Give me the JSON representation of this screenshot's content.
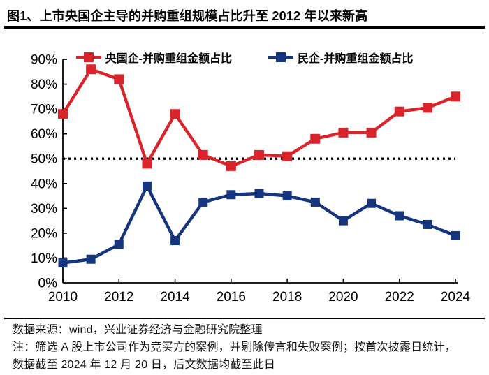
{
  "title": "图1、上市央国企主导的并购重组规模占比升至 2012 年以来新高",
  "legend": [
    {
      "label": "央国企-并购重组金额占比",
      "color": "#d9242b"
    },
    {
      "label": "民企-并购重组金额占比",
      "color": "#15357e"
    }
  ],
  "chart_data": {
    "type": "line",
    "x": [
      2010,
      2011,
      2012,
      2013,
      2014,
      2015,
      2016,
      2017,
      2018,
      2019,
      2020,
      2021,
      2022,
      2023,
      2024
    ],
    "series": [
      {
        "name": "央国企-并购重组金额占比",
        "color": "#d9242b",
        "marker": "square",
        "marker_size": 14,
        "values": [
          68,
          86,
          82,
          48,
          68,
          51.5,
          47,
          51.5,
          51,
          58,
          60.5,
          60.5,
          69,
          70.5,
          75
        ]
      },
      {
        "name": "民企-并购重组金额占比",
        "color": "#15357e",
        "marker": "square",
        "marker_size": 13,
        "values": [
          8,
          9.5,
          15.5,
          39,
          17,
          32.5,
          35.5,
          36,
          35,
          32.5,
          25,
          32,
          27,
          23.5,
          19
        ]
      }
    ],
    "ylim": [
      0,
      90
    ],
    "ytick_step": 10,
    "ytick_suffix": "%",
    "xticks": [
      2010,
      2012,
      2014,
      2016,
      2018,
      2020,
      2022,
      2024
    ],
    "reference_line": {
      "value": 50,
      "style": "dotted",
      "color": "#000000"
    },
    "grid": false,
    "legend_position": "top",
    "axis_color": "#000000"
  },
  "footer": {
    "source": "数据来源：wind，兴业证券经济与金融研究院整理",
    "note_line1": "注：筛选 A 股上市公司作为竞买方的案例，并剔除传言和失败案例；按首次披露日统计，",
    "note_line2": "数据截至 2024 年 12 月 20 日，后文数据均截至此日"
  }
}
